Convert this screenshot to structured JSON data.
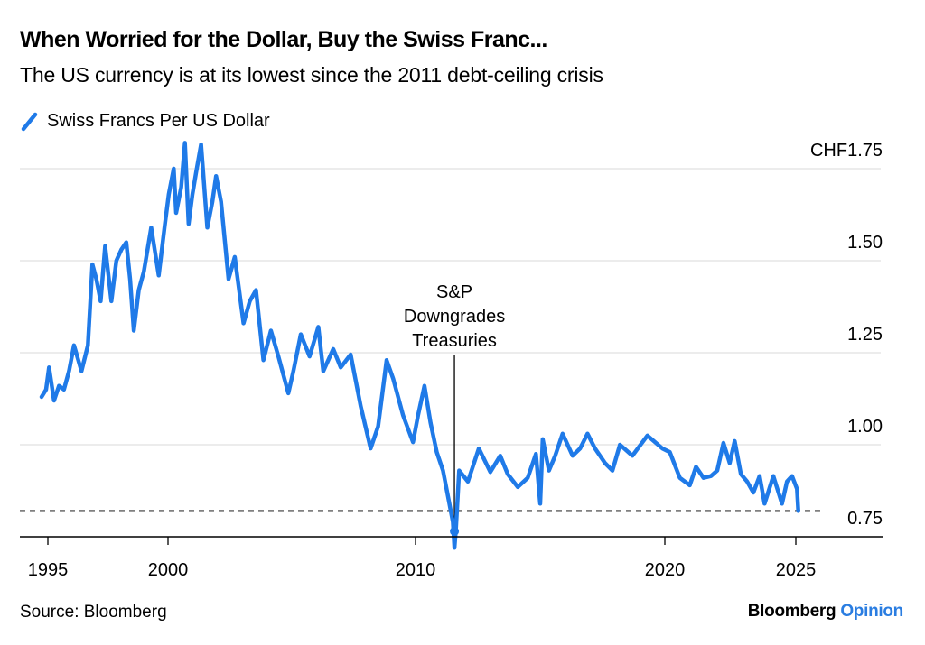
{
  "header": {
    "title": "When Worried for the Dollar, Buy the Swiss Franc...",
    "subtitle": "The US currency is at its lowest since the 2011 debt-ceiling crisis"
  },
  "footer": {
    "source": "Source: Bloomberg",
    "logo_brand": "Bloomberg",
    "logo_section": "Opinion"
  },
  "colors": {
    "line": "#1f7ae8",
    "grid": "#e6e6e6",
    "logo_accent": "#2a7de1"
  },
  "chart_data": {
    "type": "line",
    "title": "When Worried for the Dollar, Buy the Swiss Franc...",
    "subtitle": "The US currency is at its lowest since the 2011 debt-ceiling crisis",
    "xlabel": "",
    "ylabel": "",
    "legend": {
      "position": "top-left",
      "entries": [
        "Swiss Francs Per US Dollar"
      ]
    },
    "grid": true,
    "xlim": [
      1994.8,
      2026.6
    ],
    "ylim": [
      0.75,
      1.85
    ],
    "x_ticks": [
      1995,
      2000,
      2010,
      2020,
      2025
    ],
    "x_tick_labels": [
      "1995",
      "2000",
      "2010",
      "2020",
      "2025"
    ],
    "y_ticks": [
      0.75,
      1.0,
      1.25,
      1.5,
      1.75
    ],
    "y_tick_labels": [
      "0.75",
      "1.00",
      "1.25",
      "1.50",
      "CHF1.75"
    ],
    "reference_line": {
      "value": 0.82,
      "style": "dashed"
    },
    "annotation": {
      "x": 2011.56,
      "lines": [
        "S&P",
        "Downgrades",
        "Treasuries"
      ],
      "marker_value": 0.765
    },
    "series": [
      {
        "name": "Swiss Francs Per US Dollar",
        "x": [
          1995.0,
          1995.18,
          1995.3,
          1995.5,
          1995.7,
          1995.9,
          1996.1,
          1996.3,
          1996.6,
          1996.86,
          1997.04,
          1997.2,
          1997.37,
          1997.55,
          1997.8,
          1998.0,
          1998.2,
          1998.4,
          1998.55,
          1998.7,
          1998.9,
          1999.1,
          1999.4,
          1999.7,
          1999.95,
          2000.1,
          2000.3,
          2000.4,
          2000.6,
          2000.75,
          2000.9,
          2001.05,
          2001.2,
          2001.4,
          2001.65,
          2001.85,
          2002.0,
          2002.2,
          2002.5,
          2002.75,
          2003.1,
          2003.35,
          2003.6,
          2003.9,
          2004.2,
          2004.5,
          2004.9,
          2005.1,
          2005.4,
          2005.75,
          2006.1,
          2006.3,
          2006.7,
          2007.0,
          2007.4,
          2007.8,
          2008.2,
          2008.5,
          2008.84,
          2009.1,
          2009.5,
          2009.9,
          2010.1,
          2010.36,
          2010.6,
          2010.85,
          2011.1,
          2011.33,
          2011.5,
          2011.56,
          2011.62,
          2011.75,
          2012.1,
          2012.54,
          2013.0,
          2013.4,
          2013.7,
          2014.1,
          2014.5,
          2014.83,
          2015.0,
          2015.1,
          2015.35,
          2015.6,
          2015.9,
          2016.3,
          2016.6,
          2016.9,
          2017.2,
          2017.6,
          2017.9,
          2018.2,
          2018.7,
          2019.3,
          2019.9,
          2020.2,
          2020.6,
          2021.0,
          2021.25,
          2021.55,
          2021.85,
          2022.1,
          2022.35,
          2022.6,
          2022.8,
          2023.05,
          2023.3,
          2023.55,
          2023.8,
          2024.0,
          2024.35,
          2024.7,
          2024.9,
          2025.1,
          2025.3,
          2025.35
        ],
        "values": [
          1.13,
          1.15,
          1.21,
          1.12,
          1.16,
          1.15,
          1.2,
          1.27,
          1.2,
          1.27,
          1.49,
          1.45,
          1.39,
          1.54,
          1.39,
          1.5,
          1.53,
          1.55,
          1.45,
          1.31,
          1.42,
          1.47,
          1.59,
          1.46,
          1.6,
          1.68,
          1.75,
          1.63,
          1.7,
          1.82,
          1.6,
          1.68,
          1.74,
          1.816,
          1.59,
          1.66,
          1.73,
          1.66,
          1.45,
          1.51,
          1.33,
          1.39,
          1.42,
          1.23,
          1.31,
          1.24,
          1.14,
          1.2,
          1.3,
          1.24,
          1.32,
          1.2,
          1.26,
          1.21,
          1.245,
          1.105,
          0.99,
          1.05,
          1.23,
          1.18,
          1.08,
          1.007,
          1.08,
          1.16,
          1.06,
          0.98,
          0.93,
          0.85,
          0.79,
          0.72,
          0.77,
          0.93,
          0.9,
          0.99,
          0.926,
          0.97,
          0.92,
          0.885,
          0.91,
          0.975,
          0.84,
          1.015,
          0.93,
          0.97,
          1.03,
          0.97,
          0.99,
          1.03,
          0.99,
          0.95,
          0.93,
          1.0,
          0.97,
          1.025,
          0.99,
          0.98,
          0.91,
          0.89,
          0.94,
          0.91,
          0.915,
          0.93,
          1.005,
          0.95,
          1.01,
          0.92,
          0.9,
          0.87,
          0.915,
          0.84,
          0.915,
          0.84,
          0.9,
          0.915,
          0.88,
          0.82
        ]
      }
    ]
  }
}
